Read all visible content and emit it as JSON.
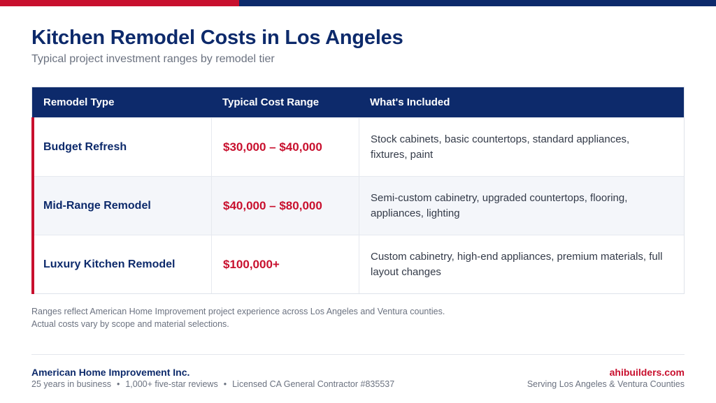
{
  "header": {
    "title": "Kitchen Remodel Costs in Los Angeles",
    "subtitle": "Typical project investment ranges by remodel tier"
  },
  "table": {
    "columns": [
      "Remodel Type",
      "Typical Cost Range",
      "What's Included"
    ],
    "rows": [
      {
        "type": "Budget Refresh",
        "cost": "$30,000 – $40,000",
        "included": "Stock cabinets, basic countertops, standard appliances, fixtures, paint"
      },
      {
        "type": "Mid-Range Remodel",
        "cost": "$40,000 – $80,000",
        "included": "Semi-custom cabinetry, upgraded countertops, flooring, appliances, lighting"
      },
      {
        "type": "Luxury Kitchen Remodel",
        "cost": "$100,000+",
        "included": "Custom cabinetry, high-end appliances, premium materials, full layout changes"
      }
    ]
  },
  "note": {
    "line1": "Ranges reflect American Home Improvement project experience across Los Angeles and Ventura counties.",
    "line2": "Actual costs vary by scope and material selections."
  },
  "footer": {
    "company": "American Home Improvement Inc.",
    "facts": [
      "25 years in business",
      "1,000+ five-star reviews",
      "Licensed CA General Contractor #835537"
    ],
    "separator": "•",
    "website": "ahibuilders.com",
    "serving": "Serving Los Angeles & Ventura Counties"
  },
  "colors": {
    "navy": "#0d2a6b",
    "red": "#c8102e",
    "alt_row": "#f4f6fa"
  }
}
